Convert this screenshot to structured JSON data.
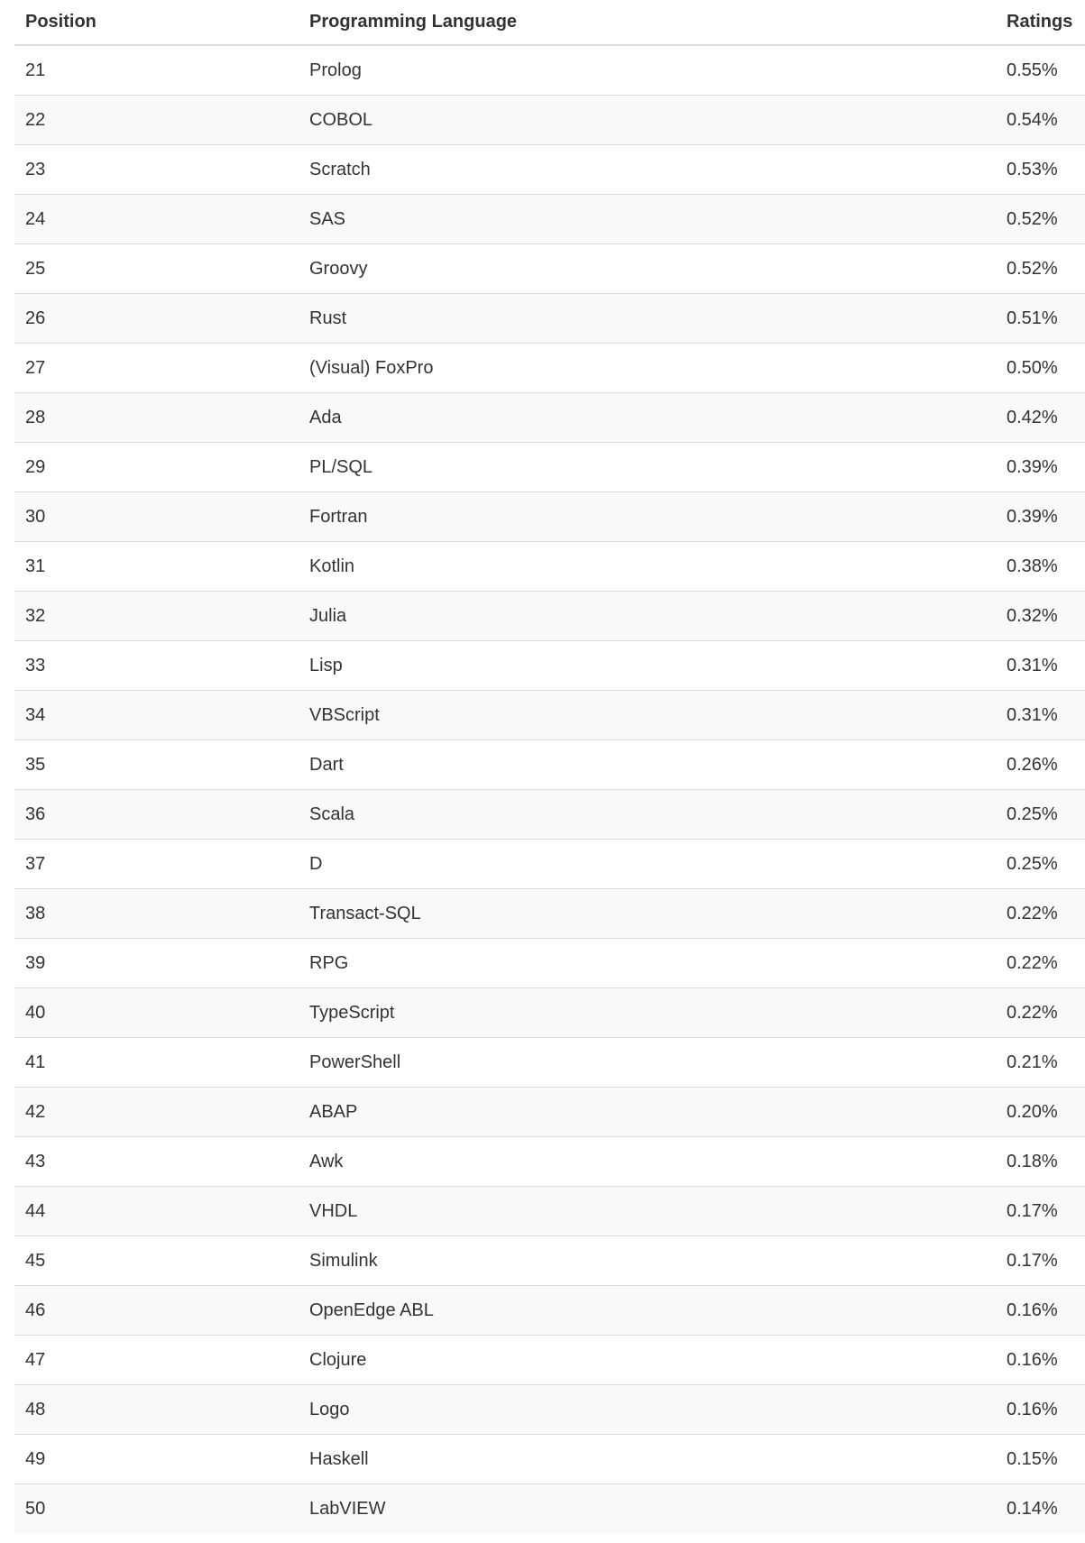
{
  "table": {
    "headers": {
      "position": "Position",
      "language": "Programming Language",
      "ratings": "Ratings"
    },
    "rows": [
      {
        "position": "21",
        "language": "Prolog",
        "ratings": "0.55%"
      },
      {
        "position": "22",
        "language": "COBOL",
        "ratings": "0.54%"
      },
      {
        "position": "23",
        "language": "Scratch",
        "ratings": "0.53%"
      },
      {
        "position": "24",
        "language": "SAS",
        "ratings": "0.52%"
      },
      {
        "position": "25",
        "language": "Groovy",
        "ratings": "0.52%"
      },
      {
        "position": "26",
        "language": "Rust",
        "ratings": "0.51%"
      },
      {
        "position": "27",
        "language": "(Visual) FoxPro",
        "ratings": "0.50%"
      },
      {
        "position": "28",
        "language": "Ada",
        "ratings": "0.42%"
      },
      {
        "position": "29",
        "language": "PL/SQL",
        "ratings": "0.39%"
      },
      {
        "position": "30",
        "language": "Fortran",
        "ratings": "0.39%"
      },
      {
        "position": "31",
        "language": "Kotlin",
        "ratings": "0.38%"
      },
      {
        "position": "32",
        "language": "Julia",
        "ratings": "0.32%"
      },
      {
        "position": "33",
        "language": "Lisp",
        "ratings": "0.31%"
      },
      {
        "position": "34",
        "language": "VBScript",
        "ratings": "0.31%"
      },
      {
        "position": "35",
        "language": "Dart",
        "ratings": "0.26%"
      },
      {
        "position": "36",
        "language": "Scala",
        "ratings": "0.25%"
      },
      {
        "position": "37",
        "language": "D",
        "ratings": "0.25%"
      },
      {
        "position": "38",
        "language": "Transact-SQL",
        "ratings": "0.22%"
      },
      {
        "position": "39",
        "language": "RPG",
        "ratings": "0.22%"
      },
      {
        "position": "40",
        "language": "TypeScript",
        "ratings": "0.22%"
      },
      {
        "position": "41",
        "language": "PowerShell",
        "ratings": "0.21%"
      },
      {
        "position": "42",
        "language": "ABAP",
        "ratings": "0.20%"
      },
      {
        "position": "43",
        "language": "Awk",
        "ratings": "0.18%"
      },
      {
        "position": "44",
        "language": "VHDL",
        "ratings": "0.17%"
      },
      {
        "position": "45",
        "language": "Simulink",
        "ratings": "0.17%"
      },
      {
        "position": "46",
        "language": "OpenEdge ABL",
        "ratings": "0.16%"
      },
      {
        "position": "47",
        "language": "Clojure",
        "ratings": "0.16%"
      },
      {
        "position": "48",
        "language": "Logo",
        "ratings": "0.16%"
      },
      {
        "position": "49",
        "language": "Haskell",
        "ratings": "0.15%"
      },
      {
        "position": "50",
        "language": "LabVIEW",
        "ratings": "0.14%"
      }
    ]
  }
}
